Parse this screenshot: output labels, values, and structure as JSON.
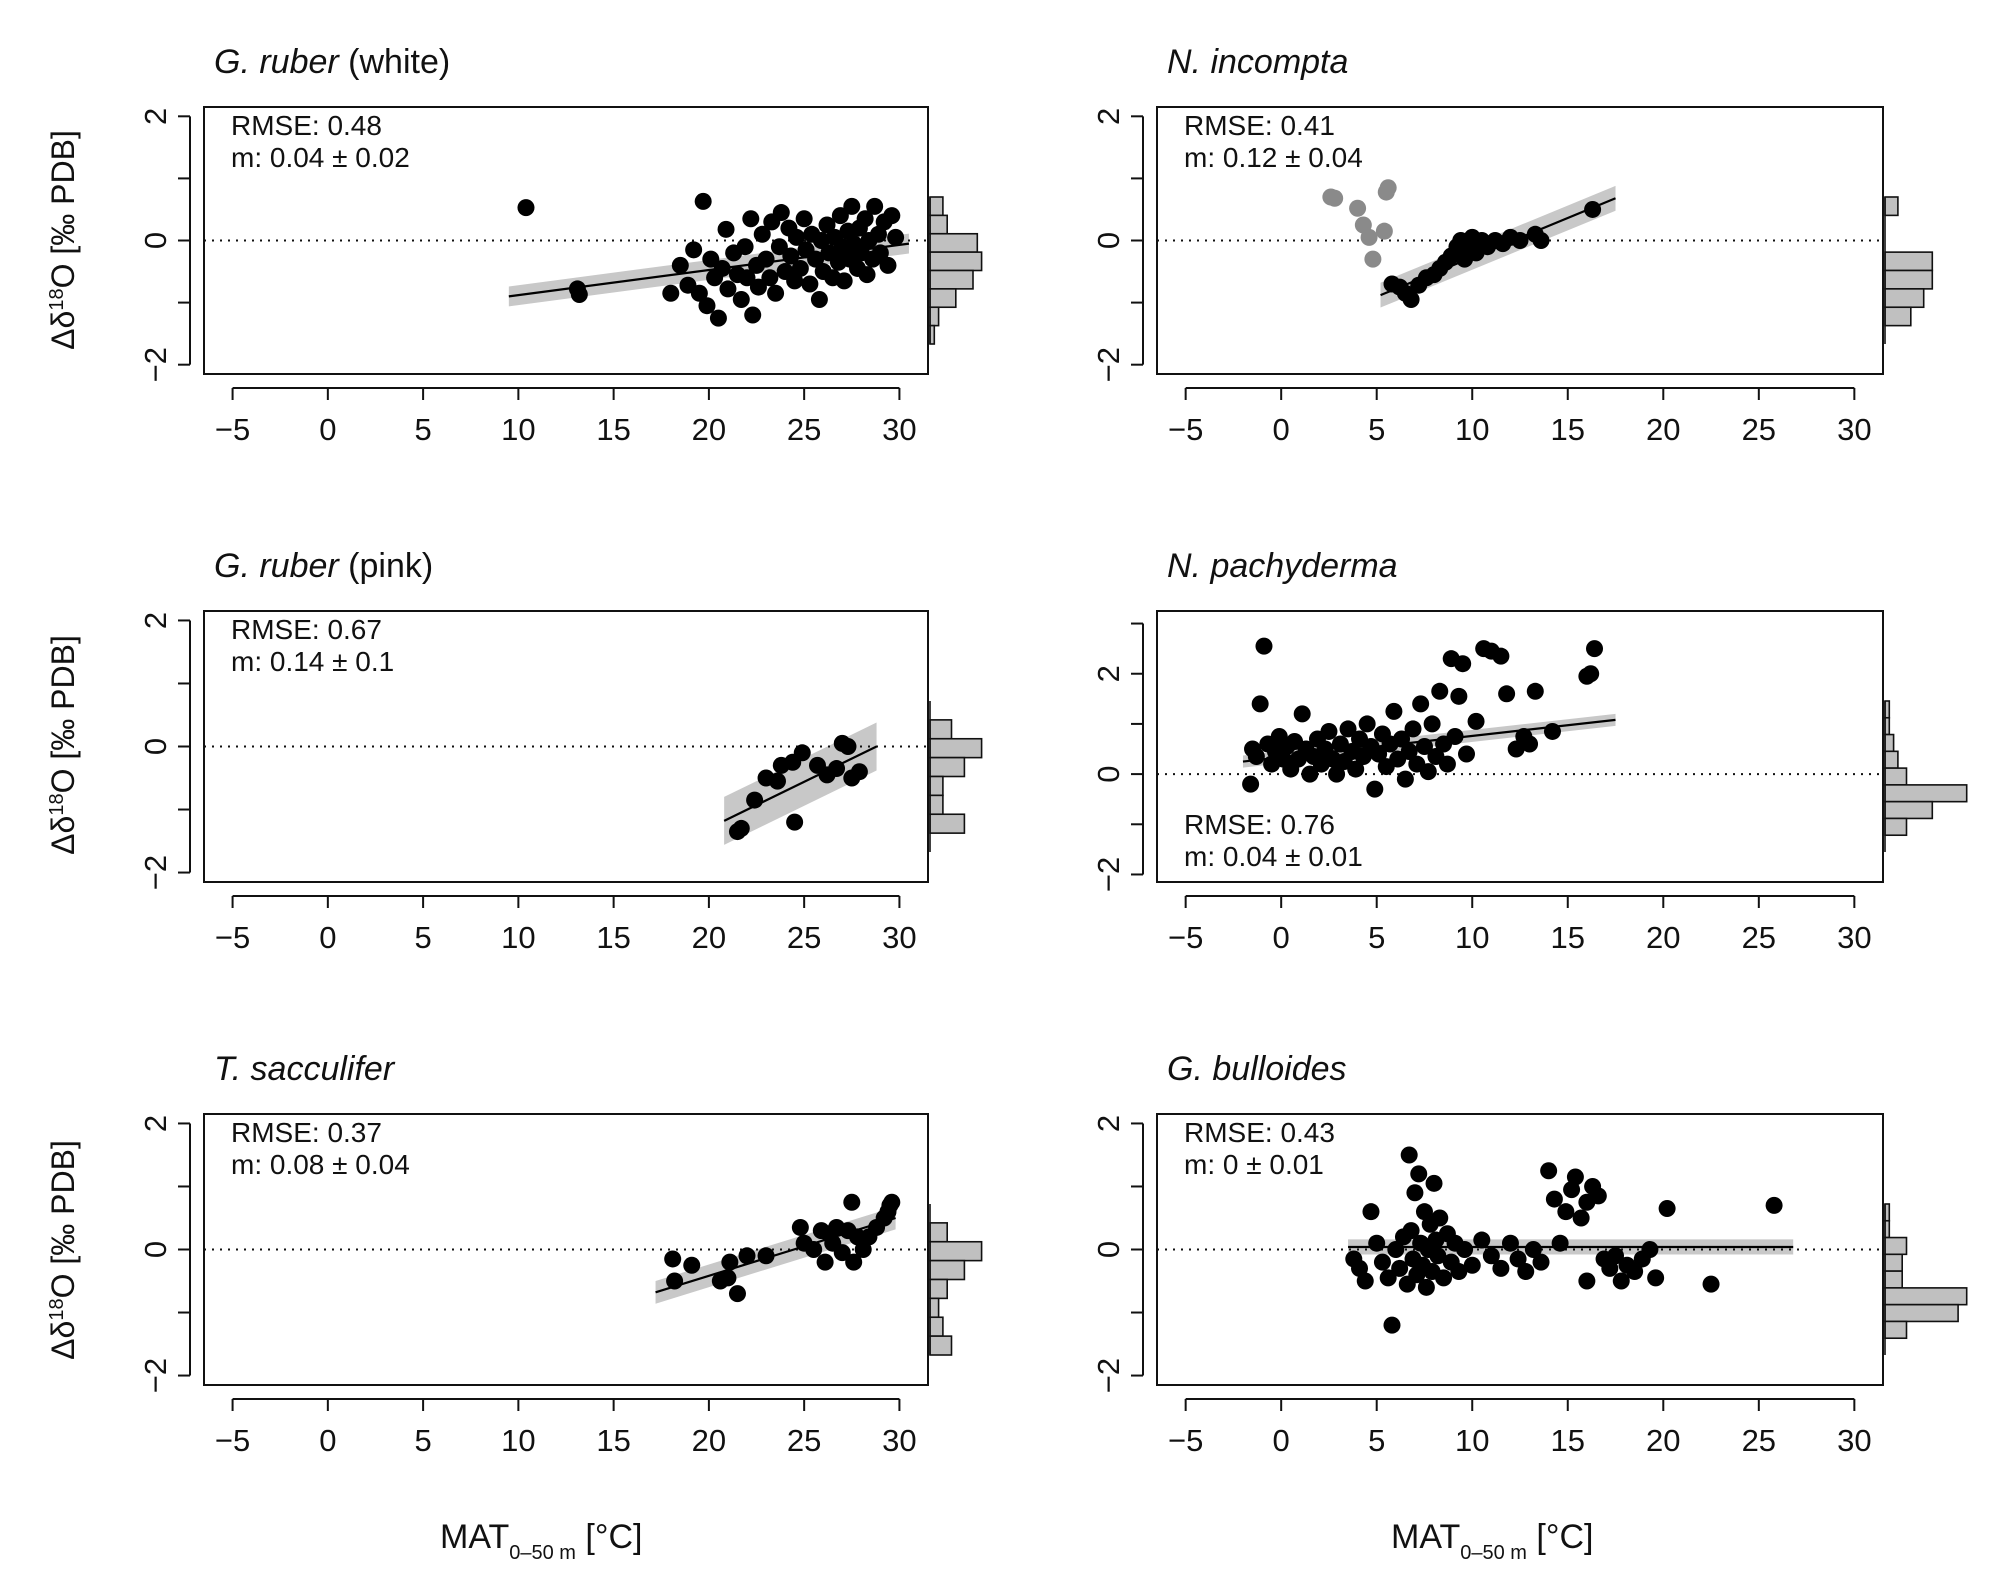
{
  "figure": {
    "ylabel": {
      "pre": "Δδ",
      "sup": "18",
      "post": "O [‰ PDB]"
    },
    "xlabel": {
      "main": "MAT",
      "sub": "0–50 m",
      "unit": " [°C]"
    }
  },
  "chart_data": [
    {
      "type": "scatter",
      "title_italic": "G. ruber",
      "title_plain": " (white)",
      "rmse": "RMSE: 0.48",
      "slope": "m: 0.04 ± 0.02",
      "xlim": [
        -6.5,
        31.5
      ],
      "ylim": [
        -2.15,
        2.15
      ],
      "xticks": [
        -5,
        0,
        5,
        10,
        15,
        20,
        25,
        30
      ],
      "yticks": [
        -2,
        0,
        2
      ],
      "fit": {
        "x": [
          9.5,
          30.5
        ],
        "y": [
          -0.9,
          -0.05
        ],
        "band": 0.16
      },
      "grey_points": [],
      "points": [
        [
          10.4,
          0.53
        ],
        [
          13.1,
          -0.78
        ],
        [
          13.2,
          -0.87
        ],
        [
          18.0,
          -0.85
        ],
        [
          18.5,
          -0.4
        ],
        [
          18.9,
          -0.72
        ],
        [
          19.2,
          -0.15
        ],
        [
          19.5,
          -0.85
        ],
        [
          19.7,
          0.63
        ],
        [
          19.9,
          -1.05
        ],
        [
          20.1,
          -0.3
        ],
        [
          20.3,
          -0.6
        ],
        [
          20.5,
          -1.25
        ],
        [
          20.7,
          -0.45
        ],
        [
          20.9,
          0.18
        ],
        [
          21.0,
          -0.78
        ],
        [
          21.3,
          -0.2
        ],
        [
          21.5,
          -0.55
        ],
        [
          21.7,
          -0.95
        ],
        [
          21.9,
          -0.1
        ],
        [
          22.0,
          -0.6
        ],
        [
          22.2,
          0.35
        ],
        [
          22.3,
          -1.2
        ],
        [
          22.5,
          -0.4
        ],
        [
          22.6,
          -0.75
        ],
        [
          22.8,
          0.1
        ],
        [
          23.0,
          -0.3
        ],
        [
          23.2,
          -0.6
        ],
        [
          23.3,
          0.3
        ],
        [
          23.5,
          -0.85
        ],
        [
          23.7,
          -0.1
        ],
        [
          23.8,
          0.45
        ],
        [
          24.0,
          -0.5
        ],
        [
          24.2,
          0.2
        ],
        [
          24.3,
          -0.25
        ],
        [
          24.5,
          -0.65
        ],
        [
          24.6,
          0.05
        ],
        [
          24.8,
          -0.45
        ],
        [
          25.0,
          0.35
        ],
        [
          25.1,
          -0.15
        ],
        [
          25.3,
          -0.7
        ],
        [
          25.4,
          0.1
        ],
        [
          25.6,
          -0.3
        ],
        [
          25.8,
          -0.95
        ],
        [
          25.9,
          0.0
        ],
        [
          26.0,
          -0.5
        ],
        [
          26.2,
          0.25
        ],
        [
          26.3,
          -0.2
        ],
        [
          26.5,
          -0.6
        ],
        [
          26.6,
          0.05
        ],
        [
          26.8,
          -0.35
        ],
        [
          26.9,
          0.4
        ],
        [
          27.0,
          -0.1
        ],
        [
          27.1,
          -0.65
        ],
        [
          27.3,
          0.15
        ],
        [
          27.4,
          -0.3
        ],
        [
          27.5,
          0.55
        ],
        [
          27.6,
          -0.05
        ],
        [
          27.8,
          -0.45
        ],
        [
          27.9,
          0.2
        ],
        [
          28.0,
          -0.2
        ],
        [
          28.2,
          0.35
        ],
        [
          28.3,
          -0.55
        ],
        [
          28.4,
          0.0
        ],
        [
          28.6,
          -0.3
        ],
        [
          28.7,
          0.55
        ],
        [
          28.9,
          0.1
        ],
        [
          29.0,
          -0.2
        ],
        [
          29.2,
          0.3
        ],
        [
          29.4,
          -0.4
        ],
        [
          29.6,
          0.4
        ],
        [
          29.8,
          0.05
        ]
      ],
      "hist": [
        0.15,
        0.2,
        0.55,
        0.6,
        0.5,
        0.3,
        0.1,
        0.05
      ]
    },
    {
      "type": "scatter",
      "title_italic": "N. incompta",
      "title_plain": "",
      "rmse": "RMSE: 0.41",
      "slope": "m: 0.12 ± 0.04",
      "xlim": [
        -6.5,
        31.5
      ],
      "ylim": [
        -2.15,
        2.15
      ],
      "xticks": [
        -5,
        0,
        5,
        10,
        15,
        20,
        25,
        30
      ],
      "yticks": [
        -2,
        0,
        2
      ],
      "fit": {
        "x": [
          5.2,
          17.5
        ],
        "y": [
          -0.88,
          0.68
        ],
        "band": 0.2
      },
      "grey_points": [
        [
          2.6,
          0.7
        ],
        [
          2.8,
          0.68
        ],
        [
          4.0,
          0.52
        ],
        [
          4.3,
          0.25
        ],
        [
          4.6,
          0.05
        ],
        [
          4.8,
          -0.3
        ],
        [
          5.4,
          0.15
        ],
        [
          5.5,
          0.78
        ],
        [
          5.6,
          0.85
        ]
      ],
      "points": [
        [
          5.8,
          -0.7
        ],
        [
          6.2,
          -0.75
        ],
        [
          6.5,
          -0.85
        ],
        [
          6.8,
          -0.95
        ],
        [
          7.2,
          -0.72
        ],
        [
          7.6,
          -0.6
        ],
        [
          8.0,
          -0.55
        ],
        [
          8.3,
          -0.45
        ],
        [
          8.6,
          -0.35
        ],
        [
          8.9,
          -0.25
        ],
        [
          9.2,
          -0.1
        ],
        [
          9.4,
          0.0
        ],
        [
          9.6,
          -0.3
        ],
        [
          9.8,
          -0.15
        ],
        [
          10.0,
          0.05
        ],
        [
          10.2,
          -0.2
        ],
        [
          10.5,
          0.0
        ],
        [
          10.8,
          -0.1
        ],
        [
          11.2,
          0.0
        ],
        [
          11.6,
          -0.05
        ],
        [
          12.0,
          0.05
        ],
        [
          12.5,
          0.0
        ],
        [
          13.3,
          0.1
        ],
        [
          13.6,
          0.0
        ],
        [
          16.3,
          0.5
        ]
      ],
      "hist": [
        0.15,
        0.0,
        0.0,
        0.55,
        0.55,
        0.45,
        0.3,
        0.0
      ]
    },
    {
      "type": "scatter",
      "title_italic": "G. ruber",
      "title_plain": " (pink)",
      "rmse": "RMSE: 0.67",
      "slope": "m: 0.14 ± 0.1",
      "xlim": [
        -6.5,
        31.5
      ],
      "ylim": [
        -2.15,
        2.15
      ],
      "xticks": [
        -5,
        0,
        5,
        10,
        15,
        20,
        25,
        30
      ],
      "yticks": [
        -2,
        0,
        2
      ],
      "fit": {
        "x": [
          20.8,
          28.8
        ],
        "y": [
          -1.18,
          0.0
        ],
        "band": 0.38
      },
      "grey_points": [],
      "points": [
        [
          21.5,
          -1.35
        ],
        [
          21.7,
          -1.3
        ],
        [
          22.4,
          -0.85
        ],
        [
          23.0,
          -0.5
        ],
        [
          23.6,
          -0.55
        ],
        [
          23.8,
          -0.3
        ],
        [
          24.4,
          -0.25
        ],
        [
          24.5,
          -1.2
        ],
        [
          24.9,
          -0.1
        ],
        [
          25.7,
          -0.3
        ],
        [
          26.2,
          -0.45
        ],
        [
          26.7,
          -0.35
        ],
        [
          27.0,
          0.05
        ],
        [
          27.3,
          0.0
        ],
        [
          27.5,
          -0.5
        ],
        [
          27.9,
          -0.4
        ]
      ],
      "hist": [
        0.0,
        0.25,
        0.6,
        0.4,
        0.15,
        0.15,
        0.4,
        0.0
      ]
    },
    {
      "type": "scatter",
      "title_italic": "N. pachyderma",
      "title_plain": "",
      "rmse": "RMSE: 0.76",
      "slope": "m: 0.04 ± 0.01",
      "xlim": [
        -6.5,
        31.5
      ],
      "ylim": [
        -2.15,
        3.25
      ],
      "xticks": [
        -5,
        0,
        5,
        10,
        15,
        20,
        25,
        30
      ],
      "yticks": [
        -2,
        0,
        2
      ],
      "fit": {
        "x": [
          -2.0,
          17.5
        ],
        "y": [
          0.25,
          1.08
        ],
        "band": 0.12
      },
      "grey_points": [],
      "points": [
        [
          -1.6,
          -0.2
        ],
        [
          -1.5,
          0.5
        ],
        [
          -1.3,
          0.35
        ],
        [
          -1.1,
          1.4
        ],
        [
          -0.9,
          2.55
        ],
        [
          -0.7,
          0.6
        ],
        [
          -0.5,
          0.2
        ],
        [
          -0.3,
          0.45
        ],
        [
          -0.1,
          0.75
        ],
        [
          0.1,
          0.3
        ],
        [
          0.3,
          0.55
        ],
        [
          0.5,
          0.1
        ],
        [
          0.7,
          0.65
        ],
        [
          0.9,
          0.3
        ],
        [
          1.1,
          1.2
        ],
        [
          1.3,
          0.5
        ],
        [
          1.5,
          0.0
        ],
        [
          1.7,
          0.35
        ],
        [
          1.9,
          0.7
        ],
        [
          2.1,
          0.2
        ],
        [
          2.3,
          0.5
        ],
        [
          2.5,
          0.85
        ],
        [
          2.7,
          0.3
        ],
        [
          2.9,
          0.0
        ],
        [
          3.1,
          0.6
        ],
        [
          3.3,
          0.25
        ],
        [
          3.5,
          0.9
        ],
        [
          3.7,
          0.45
        ],
        [
          3.9,
          0.1
        ],
        [
          4.1,
          0.7
        ],
        [
          4.3,
          0.35
        ],
        [
          4.5,
          1.0
        ],
        [
          4.7,
          0.55
        ],
        [
          4.9,
          -0.3
        ],
        [
          5.1,
          0.4
        ],
        [
          5.3,
          0.8
        ],
        [
          5.5,
          0.15
        ],
        [
          5.7,
          0.6
        ],
        [
          5.9,
          1.25
        ],
        [
          6.1,
          0.3
        ],
        [
          6.3,
          0.7
        ],
        [
          6.5,
          -0.1
        ],
        [
          6.7,
          0.45
        ],
        [
          6.9,
          0.9
        ],
        [
          7.1,
          0.2
        ],
        [
          7.3,
          1.4
        ],
        [
          7.5,
          0.55
        ],
        [
          7.7,
          0.05
        ],
        [
          7.9,
          1.0
        ],
        [
          8.1,
          0.35
        ],
        [
          8.3,
          1.65
        ],
        [
          8.5,
          0.6
        ],
        [
          8.7,
          0.2
        ],
        [
          8.9,
          2.3
        ],
        [
          9.1,
          0.75
        ],
        [
          9.3,
          1.55
        ],
        [
          9.5,
          2.2
        ],
        [
          9.7,
          0.4
        ],
        [
          10.2,
          1.05
        ],
        [
          10.6,
          2.5
        ],
        [
          11.0,
          2.45
        ],
        [
          11.5,
          2.35
        ],
        [
          11.8,
          1.6
        ],
        [
          12.3,
          0.5
        ],
        [
          12.7,
          0.75
        ],
        [
          13.0,
          0.6
        ],
        [
          13.3,
          1.65
        ],
        [
          14.2,
          0.85
        ],
        [
          16.0,
          1.95
        ],
        [
          16.2,
          2.0
        ],
        [
          16.4,
          2.5
        ]
      ],
      "hist": [
        0.05,
        0.05,
        0.1,
        0.15,
        0.25,
        0.95,
        0.55,
        0.25,
        0.0
      ]
    },
    {
      "type": "scatter",
      "title_italic": "T. sacculifer",
      "title_plain": "",
      "rmse": "RMSE: 0.37",
      "slope": "m: 0.08 ± 0.04",
      "xlim": [
        -6.5,
        31.5
      ],
      "ylim": [
        -2.15,
        2.15
      ],
      "xticks": [
        -5,
        0,
        5,
        10,
        15,
        20,
        25,
        30
      ],
      "yticks": [
        -2,
        0,
        2
      ],
      "fit": {
        "x": [
          17.2,
          29.8
        ],
        "y": [
          -0.68,
          0.5
        ],
        "band": 0.18
      },
      "grey_points": [],
      "points": [
        [
          18.1,
          -0.15
        ],
        [
          18.2,
          -0.5
        ],
        [
          19.1,
          -0.25
        ],
        [
          20.6,
          -0.5
        ],
        [
          21.0,
          -0.45
        ],
        [
          21.1,
          -0.2
        ],
        [
          21.5,
          -0.7
        ],
        [
          22.0,
          -0.1
        ],
        [
          23.0,
          -0.1
        ],
        [
          24.8,
          0.35
        ],
        [
          25.0,
          0.1
        ],
        [
          25.5,
          0.0
        ],
        [
          25.9,
          0.3
        ],
        [
          26.1,
          -0.2
        ],
        [
          26.3,
          0.25
        ],
        [
          26.5,
          0.1
        ],
        [
          26.7,
          0.35
        ],
        [
          27.0,
          -0.05
        ],
        [
          27.3,
          0.3
        ],
        [
          27.6,
          -0.2
        ],
        [
          27.8,
          0.2
        ],
        [
          28.1,
          0.0
        ],
        [
          28.4,
          0.2
        ],
        [
          28.8,
          0.35
        ],
        [
          29.2,
          0.5
        ],
        [
          29.4,
          0.6
        ],
        [
          29.5,
          0.7
        ],
        [
          29.6,
          0.75
        ],
        [
          27.5,
          0.75
        ]
      ],
      "hist": [
        0.0,
        0.2,
        0.6,
        0.4,
        0.2,
        0.1,
        0.15,
        0.25
      ]
    },
    {
      "type": "scatter",
      "title_italic": "G. bulloides",
      "title_plain": "",
      "rmse": "RMSE: 0.43",
      "slope": "m: 0 ± 0.01",
      "xlim": [
        -6.5,
        31.5
      ],
      "ylim": [
        -2.15,
        2.15
      ],
      "xticks": [
        -5,
        0,
        5,
        10,
        15,
        20,
        25,
        30
      ],
      "yticks": [
        -2,
        0,
        2
      ],
      "fit": {
        "x": [
          3.5,
          26.8
        ],
        "y": [
          0.04,
          0.04
        ],
        "band": 0.12
      },
      "grey_points": [],
      "points": [
        [
          3.8,
          -0.15
        ],
        [
          4.1,
          -0.3
        ],
        [
          4.4,
          -0.5
        ],
        [
          4.7,
          0.6
        ],
        [
          5.0,
          0.1
        ],
        [
          5.3,
          -0.2
        ],
        [
          5.6,
          -0.45
        ],
        [
          5.8,
          -1.2
        ],
        [
          6.0,
          0.0
        ],
        [
          6.2,
          -0.3
        ],
        [
          6.4,
          0.2
        ],
        [
          6.6,
          -0.55
        ],
        [
          6.7,
          1.5
        ],
        [
          6.8,
          0.3
        ],
        [
          6.9,
          -0.15
        ],
        [
          7.0,
          0.9
        ],
        [
          7.1,
          -0.4
        ],
        [
          7.2,
          1.2
        ],
        [
          7.3,
          0.1
        ],
        [
          7.4,
          -0.25
        ],
        [
          7.5,
          0.6
        ],
        [
          7.6,
          -0.6
        ],
        [
          7.7,
          0.0
        ],
        [
          7.8,
          0.4
        ],
        [
          7.9,
          -0.35
        ],
        [
          8.0,
          1.05
        ],
        [
          8.1,
          0.15
        ],
        [
          8.2,
          -0.1
        ],
        [
          8.3,
          0.5
        ],
        [
          8.5,
          -0.45
        ],
        [
          8.7,
          0.25
        ],
        [
          8.9,
          -0.2
        ],
        [
          9.1,
          0.1
        ],
        [
          9.3,
          -0.35
        ],
        [
          9.6,
          0.0
        ],
        [
          10.0,
          -0.25
        ],
        [
          10.5,
          0.15
        ],
        [
          11.0,
          -0.1
        ],
        [
          11.5,
          -0.3
        ],
        [
          12.0,
          0.1
        ],
        [
          12.4,
          -0.15
        ],
        [
          12.8,
          -0.35
        ],
        [
          13.2,
          0.0
        ],
        [
          13.6,
          -0.2
        ],
        [
          14.0,
          1.25
        ],
        [
          14.3,
          0.8
        ],
        [
          14.6,
          0.1
        ],
        [
          14.9,
          0.6
        ],
        [
          15.2,
          0.95
        ],
        [
          15.4,
          1.15
        ],
        [
          15.7,
          0.5
        ],
        [
          16.0,
          0.75
        ],
        [
          16.3,
          1.0
        ],
        [
          16.6,
          0.85
        ],
        [
          16.0,
          -0.5
        ],
        [
          16.9,
          -0.15
        ],
        [
          17.2,
          -0.3
        ],
        [
          17.5,
          -0.1
        ],
        [
          17.8,
          -0.5
        ],
        [
          18.1,
          -0.25
        ],
        [
          18.5,
          -0.35
        ],
        [
          18.9,
          -0.15
        ],
        [
          19.3,
          0.0
        ],
        [
          19.6,
          -0.45
        ],
        [
          20.2,
          0.65
        ],
        [
          22.5,
          -0.55
        ],
        [
          25.8,
          0.7
        ]
      ],
      "hist": [
        0.05,
        0.05,
        0.25,
        0.2,
        0.2,
        0.95,
        0.85,
        0.25,
        0.0
      ]
    }
  ]
}
